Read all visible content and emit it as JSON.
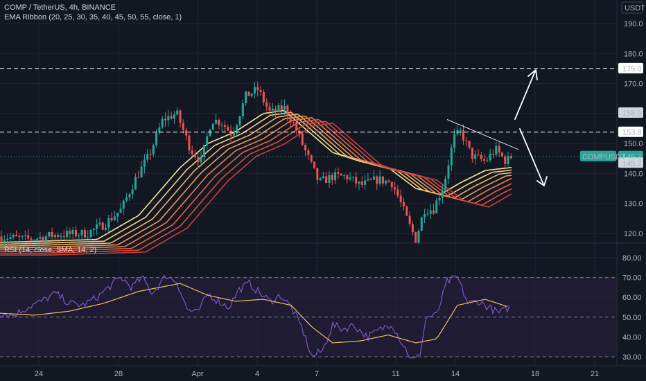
{
  "header": {
    "title": "COMP / TetherUS, 4h, BINANCE",
    "indicator": "EMA Ribbon (20, 25, 30, 35, 40, 45, 50, 55, close, 1)",
    "currency_label": "USDT"
  },
  "rsi_panel": {
    "title": "RSI (14, close, SMA, 14, 2)"
  },
  "price_axis": {
    "ticks": [
      "190.0",
      "180.0",
      "170.0",
      "160.0",
      "150.0",
      "140.0",
      "130.0",
      "120.0"
    ]
  },
  "rsi_axis": {
    "ticks": [
      "80.00",
      "70.00",
      "60.00",
      "50.00",
      "40.00",
      "30.00"
    ]
  },
  "time_axis": {
    "ticks": [
      "24",
      "28",
      "Apr",
      "4",
      "7",
      "11",
      "14",
      "18",
      "21"
    ]
  },
  "price_labels": {
    "level_upper": "175.0",
    "high_label": "158.9",
    "level_lower": "153.8",
    "symbol_tag": "COMPUSDT",
    "last_price": "145.7",
    "ema_value": "145.2"
  },
  "colors": {
    "background": "#131722",
    "up_candle": "#26a69a",
    "down_candle": "#ef5350",
    "rsi_line": "#7e57c2",
    "rsi_sma": "#f0c060",
    "rsi_band": "#1e1b33",
    "dashed_levels": "#ffffff",
    "ema_ribbon": [
      "#fbe59a",
      "#f7cf7c",
      "#f3b36a",
      "#ef9a5c",
      "#ea7f52",
      "#e06548",
      "#d44f42",
      "#c93f3d"
    ]
  },
  "chart_data": {
    "type": "candlestick",
    "symbol": "COMPUSDT",
    "timeframe": "4h",
    "price_range": [
      117,
      196
    ],
    "rsi_range": [
      26,
      84
    ],
    "horizontal_levels": [
      175.0,
      153.8
    ],
    "current_price": 145.7,
    "ema_ribbon_value": 145.2,
    "rsi_bands": [
      70,
      50,
      30
    ],
    "price_path": [
      {
        "x": 0,
        "p": 119
      },
      {
        "x": 40,
        "p": 118
      },
      {
        "x": 80,
        "p": 119.5
      },
      {
        "x": 125,
        "p": 120
      },
      {
        "x": 150,
        "p": 123
      },
      {
        "x": 175,
        "p": 128
      },
      {
        "x": 195,
        "p": 138
      },
      {
        "x": 215,
        "p": 146
      },
      {
        "x": 235,
        "p": 158
      },
      {
        "x": 255,
        "p": 160
      },
      {
        "x": 275,
        "p": 148
      },
      {
        "x": 290,
        "p": 144
      },
      {
        "x": 305,
        "p": 158
      },
      {
        "x": 320,
        "p": 157
      },
      {
        "x": 335,
        "p": 153
      },
      {
        "x": 355,
        "p": 166
      },
      {
        "x": 372,
        "p": 168
      },
      {
        "x": 390,
        "p": 160
      },
      {
        "x": 410,
        "p": 162
      },
      {
        "x": 425,
        "p": 156
      },
      {
        "x": 445,
        "p": 145
      },
      {
        "x": 460,
        "p": 137
      },
      {
        "x": 480,
        "p": 139
      },
      {
        "x": 500,
        "p": 139
      },
      {
        "x": 520,
        "p": 136
      },
      {
        "x": 545,
        "p": 138
      },
      {
        "x": 565,
        "p": 137
      },
      {
        "x": 575,
        "p": 132
      },
      {
        "x": 590,
        "p": 123
      },
      {
        "x": 600,
        "p": 118
      },
      {
        "x": 612,
        "p": 128
      },
      {
        "x": 625,
        "p": 128
      },
      {
        "x": 640,
        "p": 136
      },
      {
        "x": 655,
        "p": 152
      },
      {
        "x": 665,
        "p": 154
      },
      {
        "x": 680,
        "p": 146
      },
      {
        "x": 700,
        "p": 144
      },
      {
        "x": 715,
        "p": 148
      },
      {
        "x": 730,
        "p": 144
      },
      {
        "x": 738,
        "p": 145.7
      }
    ],
    "ema_path": [
      {
        "x": 0,
        "p": 117
      },
      {
        "x": 140,
        "p": 118
      },
      {
        "x": 200,
        "p": 126
      },
      {
        "x": 260,
        "p": 142
      },
      {
        "x": 300,
        "p": 150
      },
      {
        "x": 340,
        "p": 154
      },
      {
        "x": 380,
        "p": 160
      },
      {
        "x": 410,
        "p": 161
      },
      {
        "x": 440,
        "p": 155
      },
      {
        "x": 480,
        "p": 147
      },
      {
        "x": 520,
        "p": 144
      },
      {
        "x": 560,
        "p": 142
      },
      {
        "x": 600,
        "p": 135
      },
      {
        "x": 635,
        "p": 133
      },
      {
        "x": 665,
        "p": 137
      },
      {
        "x": 700,
        "p": 141
      },
      {
        "x": 738,
        "p": 142
      }
    ],
    "rsi_path": [
      {
        "x": 0,
        "v": 52
      },
      {
        "x": 20,
        "v": 51
      },
      {
        "x": 40,
        "v": 55
      },
      {
        "x": 60,
        "v": 58
      },
      {
        "x": 80,
        "v": 62
      },
      {
        "x": 100,
        "v": 57
      },
      {
        "x": 120,
        "v": 56
      },
      {
        "x": 140,
        "v": 60
      },
      {
        "x": 160,
        "v": 66
      },
      {
        "x": 175,
        "v": 70
      },
      {
        "x": 190,
        "v": 65
      },
      {
        "x": 205,
        "v": 70
      },
      {
        "x": 220,
        "v": 62
      },
      {
        "x": 240,
        "v": 71
      },
      {
        "x": 255,
        "v": 68
      },
      {
        "x": 270,
        "v": 54
      },
      {
        "x": 285,
        "v": 52
      },
      {
        "x": 300,
        "v": 62
      },
      {
        "x": 315,
        "v": 58
      },
      {
        "x": 330,
        "v": 55
      },
      {
        "x": 345,
        "v": 64
      },
      {
        "x": 360,
        "v": 67
      },
      {
        "x": 375,
        "v": 62
      },
      {
        "x": 390,
        "v": 58
      },
      {
        "x": 405,
        "v": 61
      },
      {
        "x": 420,
        "v": 55
      },
      {
        "x": 435,
        "v": 45
      },
      {
        "x": 450,
        "v": 30
      },
      {
        "x": 465,
        "v": 33
      },
      {
        "x": 480,
        "v": 46
      },
      {
        "x": 495,
        "v": 44
      },
      {
        "x": 510,
        "v": 46
      },
      {
        "x": 530,
        "v": 40
      },
      {
        "x": 550,
        "v": 44
      },
      {
        "x": 565,
        "v": 47
      },
      {
        "x": 580,
        "v": 37
      },
      {
        "x": 595,
        "v": 28
      },
      {
        "x": 605,
        "v": 30
      },
      {
        "x": 615,
        "v": 50
      },
      {
        "x": 630,
        "v": 51
      },
      {
        "x": 645,
        "v": 68
      },
      {
        "x": 660,
        "v": 70
      },
      {
        "x": 675,
        "v": 57
      },
      {
        "x": 690,
        "v": 58
      },
      {
        "x": 705,
        "v": 55
      },
      {
        "x": 720,
        "v": 52
      },
      {
        "x": 735,
        "v": 55
      }
    ],
    "rsi_sma_path": [
      {
        "x": 0,
        "v": 52
      },
      {
        "x": 50,
        "v": 51
      },
      {
        "x": 100,
        "v": 53
      },
      {
        "x": 150,
        "v": 57
      },
      {
        "x": 200,
        "v": 63
      },
      {
        "x": 260,
        "v": 67
      },
      {
        "x": 300,
        "v": 61
      },
      {
        "x": 340,
        "v": 58
      },
      {
        "x": 380,
        "v": 59
      },
      {
        "x": 420,
        "v": 56
      },
      {
        "x": 450,
        "v": 45
      },
      {
        "x": 480,
        "v": 37
      },
      {
        "x": 520,
        "v": 38
      },
      {
        "x": 560,
        "v": 41
      },
      {
        "x": 600,
        "v": 37
      },
      {
        "x": 630,
        "v": 39
      },
      {
        "x": 660,
        "v": 56
      },
      {
        "x": 700,
        "v": 59
      },
      {
        "x": 735,
        "v": 55
      }
    ]
  }
}
